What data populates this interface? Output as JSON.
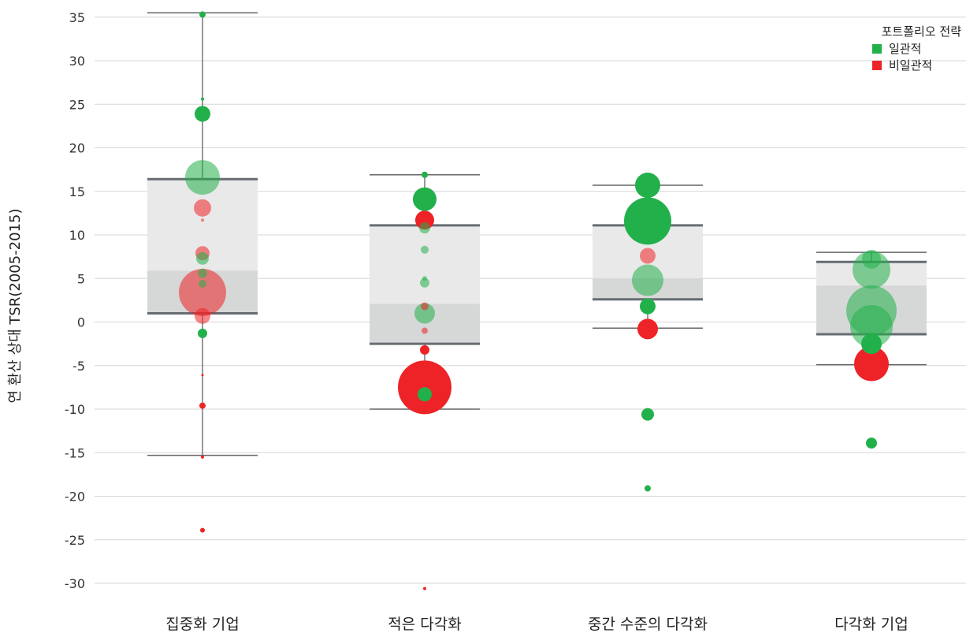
{
  "chart_data": {
    "type": "scatter",
    "title": "",
    "xlabel": "",
    "ylabel": "연 환산 상대 TSR(2005-2015)",
    "ylim": [
      -32,
      36
    ],
    "yticks": [
      35,
      30,
      25,
      20,
      15,
      10,
      5,
      0,
      -5,
      -10,
      -15,
      -20,
      -25,
      -30
    ],
    "grid": true,
    "categories": [
      "집중화 기업",
      "적은 다각화",
      "중간 수준의 다각화",
      "다각화 기업"
    ],
    "boxes": [
      {
        "category": "집중화 기업",
        "whisker_low": -15.3,
        "q1": 1.0,
        "median": 5.9,
        "q3": 16.4,
        "whisker_high": 35.5
      },
      {
        "category": "적은 다각화",
        "whisker_low": -10.0,
        "q1": -2.5,
        "median": 2.1,
        "q3": 11.1,
        "whisker_high": 16.9
      },
      {
        "category": "중간 수준의 다각화",
        "whisker_low": -0.7,
        "q1": 2.6,
        "median": 5.0,
        "q3": 11.1,
        "whisker_high": 15.7
      },
      {
        "category": "다각화 기업",
        "whisker_low": -4.9,
        "q1": -1.4,
        "median": 4.2,
        "q3": 6.9,
        "whisker_high": 8.0
      }
    ],
    "legend": {
      "title": "포트폴리오 전략",
      "position": "top-right",
      "entries": [
        {
          "name": "일관적",
          "color": "#22b04b"
        },
        {
          "name": "비일관적",
          "color": "#ee2327"
        }
      ]
    },
    "series": [
      {
        "name": "일관적",
        "color": "#22b04b",
        "points": [
          {
            "category": "집중화 기업",
            "y": 35.3,
            "size": 4
          },
          {
            "category": "집중화 기업",
            "y": 25.6,
            "size": 2
          },
          {
            "category": "집중화 기업",
            "y": 23.9,
            "size": 10
          },
          {
            "category": "집중화 기업",
            "y": 16.6,
            "size": 22
          },
          {
            "category": "집중화 기업",
            "y": 7.3,
            "size": 8
          },
          {
            "category": "집중화 기업",
            "y": 5.6,
            "size": 6
          },
          {
            "category": "집중화 기업",
            "y": 4.4,
            "size": 5
          },
          {
            "category": "집중화 기업",
            "y": -1.3,
            "size": 6
          },
          {
            "category": "적은 다각화",
            "y": 16.9,
            "size": 4
          },
          {
            "category": "적은 다각화",
            "y": 14.1,
            "size": 15
          },
          {
            "category": "적은 다각화",
            "y": 10.8,
            "size": 7
          },
          {
            "category": "적은 다각화",
            "y": 8.3,
            "size": 5
          },
          {
            "category": "적은 다각화",
            "y": 5.0,
            "size": 3
          },
          {
            "category": "적은 다각화",
            "y": 4.5,
            "size": 6
          },
          {
            "category": "적은 다각화",
            "y": 1.0,
            "size": 13
          },
          {
            "category": "적은 다각화",
            "y": -8.3,
            "size": 9
          },
          {
            "category": "중간 수준의 다각화",
            "y": 15.7,
            "size": 16
          },
          {
            "category": "중간 수준의 다각화",
            "y": 11.6,
            "size": 30
          },
          {
            "category": "중간 수준의 다각화",
            "y": 4.8,
            "size": 20
          },
          {
            "category": "중간 수준의 다각화",
            "y": 1.8,
            "size": 10
          },
          {
            "category": "중간 수준의 다각화",
            "y": -10.6,
            "size": 8
          },
          {
            "category": "중간 수준의 다각화",
            "y": -19.1,
            "size": 4
          },
          {
            "category": "다각화 기업",
            "y": 7.2,
            "size": 12
          },
          {
            "category": "다각화 기업",
            "y": 6.0,
            "size": 24
          },
          {
            "category": "다각화 기업",
            "y": 1.3,
            "size": 32
          },
          {
            "category": "다각화 기업",
            "y": -0.5,
            "size": 27
          },
          {
            "category": "다각화 기업",
            "y": -2.5,
            "size": 13
          },
          {
            "category": "다각화 기업",
            "y": -13.9,
            "size": 7
          }
        ]
      },
      {
        "name": "비일관적",
        "color": "#ee2327",
        "points": [
          {
            "category": "집중화 기업",
            "y": 13.1,
            "size": 11
          },
          {
            "category": "집중화 기업",
            "y": 11.7,
            "size": 2
          },
          {
            "category": "집중화 기업",
            "y": 7.9,
            "size": 9
          },
          {
            "category": "집중화 기업",
            "y": 3.4,
            "size": 30
          },
          {
            "category": "집중화 기업",
            "y": 0.7,
            "size": 10
          },
          {
            "category": "집중화 기업",
            "y": -6.1,
            "size": 1.5
          },
          {
            "category": "집중화 기업",
            "y": -9.6,
            "size": 4
          },
          {
            "category": "집중화 기업",
            "y": -15.5,
            "size": 2
          },
          {
            "category": "집중화 기업",
            "y": -23.9,
            "size": 3
          },
          {
            "category": "적은 다각화",
            "y": 11.7,
            "size": 12
          },
          {
            "category": "적은 다각화",
            "y": 1.8,
            "size": 5
          },
          {
            "category": "적은 다각화",
            "y": -1.0,
            "size": 4
          },
          {
            "category": "적은 다각화",
            "y": -3.2,
            "size": 6
          },
          {
            "category": "적은 다각화",
            "y": -7.5,
            "size": 34
          },
          {
            "category": "적은 다각화",
            "y": -30.6,
            "size": 2
          },
          {
            "category": "중간 수준의 다각화",
            "y": 7.6,
            "size": 10
          },
          {
            "category": "중간 수준의 다각화",
            "y": -0.8,
            "size": 13
          },
          {
            "category": "다각화 기업",
            "y": -4.8,
            "size": 22
          }
        ]
      }
    ]
  }
}
